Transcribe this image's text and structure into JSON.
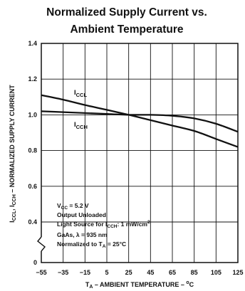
{
  "chart_data": {
    "type": "line",
    "title": [
      "Normalized Supply Current vs.",
      "Ambient Temperature"
    ],
    "xlabel": [
      "T",
      "A",
      " – AMBIENT TEMPERATURE – ",
      "o",
      "C"
    ],
    "ylabel": [
      "I",
      "CCL",
      ", I",
      "CCH",
      " – NORMALIZED SUPPLY CURRENT"
    ],
    "xlim": [
      -55,
      125
    ],
    "ylim": [
      0,
      1.4
    ],
    "x_ticks": [
      -55,
      -35,
      -15,
      5,
      25,
      45,
      65,
      85,
      105,
      125
    ],
    "x_tick_labels": [
      "−55",
      "−35",
      "−15",
      "5",
      "25",
      "45",
      "65",
      "85",
      "105",
      "125"
    ],
    "y_ticks": [
      0,
      0.4,
      0.6,
      0.8,
      1.0,
      1.2,
      1.4
    ],
    "y_tick_labels": [
      "0",
      "0.4",
      "0.6",
      "0.8",
      "1.0",
      "1.2",
      "1.4"
    ],
    "y_axis_break": true,
    "grid": true,
    "series": [
      {
        "name": [
          "I",
          "CCL"
        ],
        "x": [
          -55,
          -35,
          -15,
          5,
          25,
          45,
          65,
          85,
          105,
          125
        ],
        "values": [
          1.11,
          1.085,
          1.055,
          1.028,
          1.0,
          0.97,
          0.94,
          0.91,
          0.865,
          0.82
        ]
      },
      {
        "name": [
          "I",
          "CCH"
        ],
        "x": [
          -55,
          -35,
          -15,
          5,
          25,
          45,
          65,
          85,
          105,
          125
        ],
        "values": [
          1.02,
          1.015,
          1.01,
          1.005,
          1.0,
          1.0,
          0.995,
          0.98,
          0.95,
          0.905
        ]
      }
    ],
    "annotations": [
      [
        "V",
        "CC",
        " = 5.2  V"
      ],
      [
        "Output Unloaded"
      ],
      [
        "Light Source for I",
        "CCH",
        ": 1 mW/cm",
        "2"
      ],
      [
        "GaAs, λ = 935 nm"
      ],
      [
        "Normalized to T",
        "A",
        " = 25°C"
      ]
    ],
    "line_color": "#111111"
  }
}
